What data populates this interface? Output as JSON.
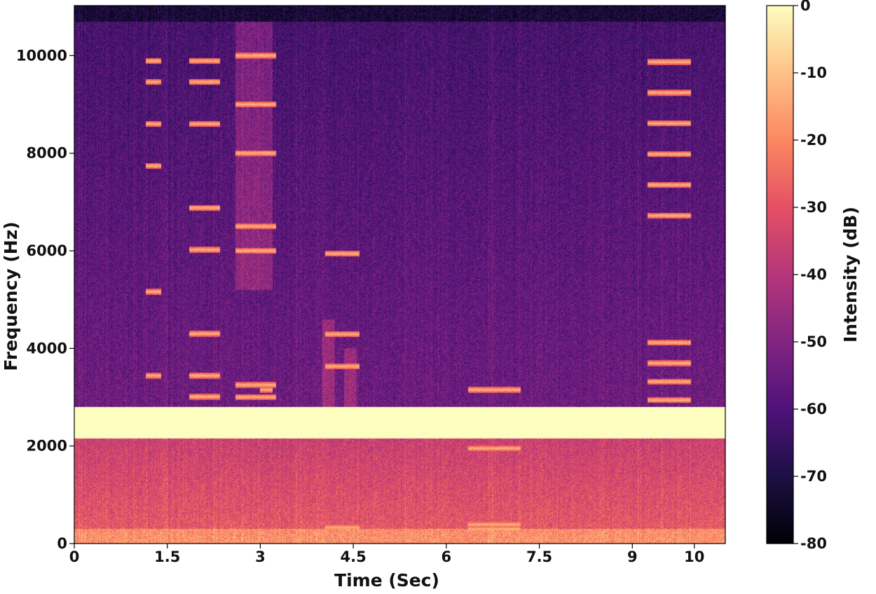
{
  "chart_data": [
    {
      "type": "heatmap",
      "title": "",
      "xlabel": "Time (Sec)",
      "ylabel": "Frequency (Hz)",
      "xlim": [
        0,
        10.5
      ],
      "ylim": [
        0,
        11025
      ],
      "xticks": [
        0,
        1.5,
        3,
        4.5,
        6,
        7.5,
        9,
        10
      ],
      "xtick_labels": [
        "0",
        "1.5",
        "3",
        "4.5",
        "6",
        "7.5",
        "9",
        "10"
      ],
      "yticks": [
        0,
        2000,
        4000,
        6000,
        8000,
        10000
      ],
      "ytick_labels": [
        "0",
        "2000",
        "4000",
        "6000",
        "8000",
        "10000"
      ],
      "colormap": "magma",
      "colorbar": {
        "label": "Intensity (dB)",
        "range": [
          -80,
          0
        ],
        "ticks": [
          0,
          -10,
          -20,
          -30,
          -40,
          -50,
          -60,
          -70,
          -80
        ],
        "tick_labels": [
          "0",
          "-10",
          "-20",
          "-30",
          "-40",
          "-50",
          "-60",
          "-70",
          "-80"
        ]
      },
      "features": {
        "saturated_band_hz": [
          2150,
          2800
        ],
        "saturated_band_db": 0,
        "background_db": -58,
        "low_frequency_db": -28,
        "top_edge_db": -80,
        "harmonic_segments": [
          {
            "t": [
              1.15,
              1.4
            ],
            "f0_hz": 430,
            "harmonics": [
              8.0,
              12.0,
              18.0,
              20.0,
              22.0,
              23.0
            ]
          },
          {
            "t": [
              1.85,
              2.35
            ],
            "f0_hz": 430,
            "harmonics": [
              7.0,
              8.0,
              10.0,
              14.0,
              16.0,
              20.0,
              22.0,
              23.0
            ]
          },
          {
            "t": [
              2.6,
              3.25
            ],
            "f0_hz": 500,
            "harmonics": [
              6.0,
              6.5,
              12.0,
              13.0,
              16.0,
              18.0,
              20.0
            ]
          },
          {
            "t": [
              3.0,
              3.2
            ],
            "f0_hz": 3150,
            "harmonics": [
              1.0
            ]
          },
          {
            "t": [
              4.05,
              4.6
            ],
            "f0_hz": 330,
            "harmonics": [
              1.0,
              11.0,
              13.0,
              18.0
            ]
          },
          {
            "t": [
              6.35,
              7.2
            ],
            "f0_hz": 300,
            "harmonics": [
              1.0,
              1.3,
              6.5,
              10.5
            ]
          },
          {
            "t": [
              9.25,
              9.95
            ],
            "f0_hz": 420,
            "harmonics": [
              7.0,
              7.9,
              8.8,
              9.8,
              16.0,
              17.5,
              19.0,
              20.5,
              22.0,
              23.5
            ]
          }
        ],
        "broadband_bursts": [
          {
            "t": [
              4.0,
              4.2
            ],
            "f_hz": [
              2800,
              4600
            ]
          },
          {
            "t": [
              4.35,
              4.55
            ],
            "f_hz": [
              2800,
              4000
            ]
          },
          {
            "t": [
              2.6,
              3.2
            ],
            "f_hz": [
              5200,
              10700
            ]
          }
        ]
      }
    }
  ]
}
